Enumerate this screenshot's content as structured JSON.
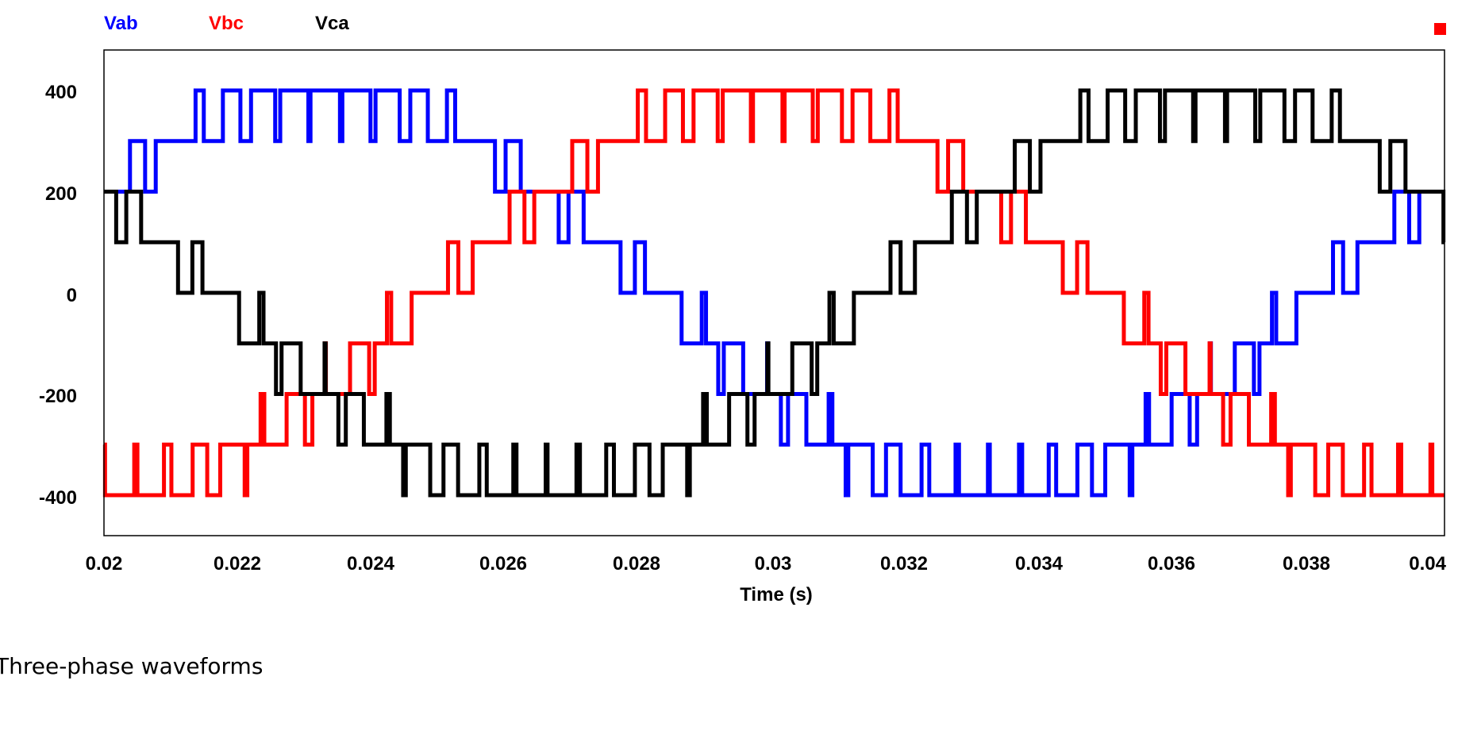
{
  "caption": "Three-phase waveforms",
  "chart_data": {
    "type": "line",
    "title": "",
    "xlabel": "Time (s)",
    "ylabel": "",
    "xlim": [
      0.02,
      0.0402
    ],
    "ylim": [
      -480,
      480
    ],
    "x_ticks": [
      "0.02",
      "0.022",
      "0.024",
      "0.026",
      "0.028",
      "0.03",
      "0.032",
      "0.034",
      "0.036",
      "0.038",
      "0.04"
    ],
    "y_ticks": [
      "400",
      "200",
      "0",
      "-200",
      "-400"
    ],
    "grid": false,
    "legend_position": "top-left",
    "frequency_hz": 50,
    "carrier_pulses_per_cycle": 42,
    "levels": [
      -400,
      -300,
      -200,
      -100,
      0,
      100,
      200,
      300,
      400
    ],
    "series": [
      {
        "name": "Vab",
        "color": "#0000ff",
        "amplitude": 400,
        "phase_deg": 30,
        "waveform": "multilevel stepped PWM, 100 V steps"
      },
      {
        "name": "Vbc",
        "color": "#ff0000",
        "amplitude": 400,
        "phase_deg": -90,
        "waveform": "multilevel stepped PWM, 100 V steps"
      },
      {
        "name": "Vca",
        "color": "#000000",
        "amplitude": 400,
        "phase_deg": 150,
        "waveform": "multilevel stepped PWM, 100 V steps"
      }
    ],
    "corner_marker_color": "#ff0000"
  }
}
